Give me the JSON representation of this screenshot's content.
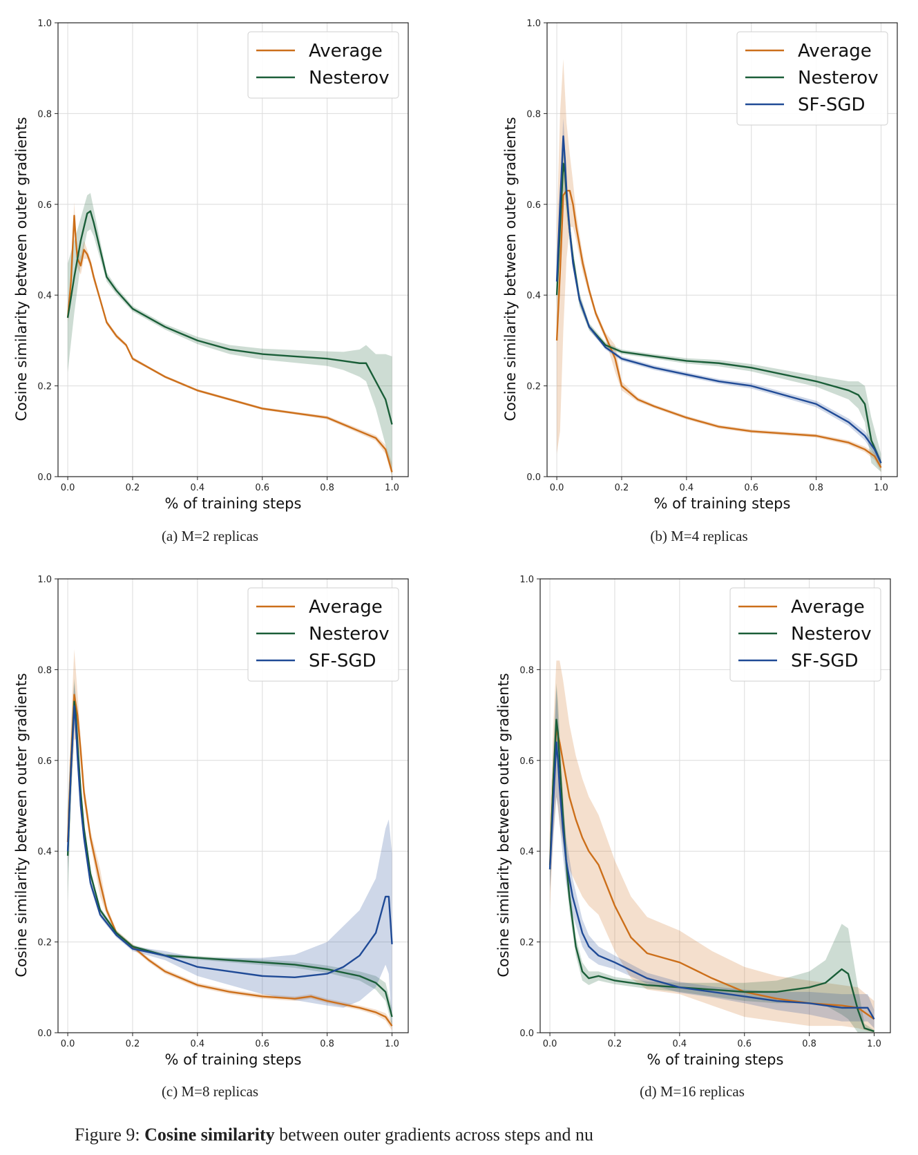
{
  "figure": {
    "caption_prefix": "Figure 9:",
    "caption_bold": "Cosine similarity",
    "caption_rest": "between outer gradients across steps and nu"
  },
  "colors": {
    "Average": "#cc6f1a",
    "Nesterov": "#1a5e38",
    "SF-SGD": "#1f4a96"
  },
  "chart_data": [
    {
      "type": "line",
      "subcaption": "(a) M=2 replicas",
      "xlabel": "% of training steps",
      "ylabel": "Cosine similarity between outer gradients",
      "xlim": [
        -0.03,
        1.05
      ],
      "ylim": [
        0,
        1.0
      ],
      "xticks": [
        "0.0",
        "0.2",
        "0.4",
        "0.6",
        "0.8",
        "1.0"
      ],
      "yticks": [
        "0.0",
        "0.2",
        "0.4",
        "0.6",
        "0.8",
        "1.0"
      ],
      "grid": true,
      "legend_position": "top-right",
      "series": [
        {
          "name": "Average",
          "x": [
            0.0,
            0.01,
            0.02,
            0.025,
            0.03,
            0.04,
            0.05,
            0.06,
            0.07,
            0.08,
            0.1,
            0.12,
            0.15,
            0.18,
            0.2,
            0.25,
            0.3,
            0.4,
            0.5,
            0.6,
            0.7,
            0.8,
            0.9,
            0.95,
            0.98,
            1.0
          ],
          "y": [
            0.35,
            0.43,
            0.575,
            0.52,
            0.48,
            0.465,
            0.5,
            0.49,
            0.47,
            0.44,
            0.39,
            0.34,
            0.31,
            0.29,
            0.26,
            0.24,
            0.22,
            0.19,
            0.17,
            0.15,
            0.14,
            0.13,
            0.1,
            0.085,
            0.06,
            0.01
          ],
          "band": [
            0.01,
            0.02,
            0.03,
            0.02,
            0.02,
            0.02,
            0.02,
            0.01,
            0.01,
            0.01,
            0.005,
            0.005,
            0.005,
            0.004,
            0.004,
            0.003,
            0.003,
            0.003,
            0.003,
            0.003,
            0.003,
            0.004,
            0.005,
            0.006,
            0.01,
            0.02
          ]
        },
        {
          "name": "Nesterov",
          "x": [
            0.0,
            0.02,
            0.04,
            0.06,
            0.07,
            0.08,
            0.1,
            0.12,
            0.15,
            0.2,
            0.3,
            0.4,
            0.5,
            0.6,
            0.7,
            0.8,
            0.85,
            0.9,
            0.92,
            0.95,
            0.98,
            1.0
          ],
          "y": [
            0.35,
            0.44,
            0.52,
            0.58,
            0.585,
            0.56,
            0.5,
            0.44,
            0.41,
            0.37,
            0.33,
            0.3,
            0.28,
            0.27,
            0.265,
            0.26,
            0.255,
            0.25,
            0.25,
            0.21,
            0.17,
            0.115
          ],
          "band": [
            0.12,
            0.08,
            0.05,
            0.04,
            0.04,
            0.03,
            0.02,
            0.01,
            0.008,
            0.006,
            0.006,
            0.008,
            0.01,
            0.012,
            0.014,
            0.016,
            0.02,
            0.03,
            0.04,
            0.06,
            0.1,
            0.15
          ]
        }
      ]
    },
    {
      "type": "line",
      "subcaption": "(b) M=4 replicas",
      "xlabel": "% of training steps",
      "ylabel": "Cosine similarity between outer gradients",
      "xlim": [
        -0.03,
        1.05
      ],
      "ylim": [
        0,
        1.0
      ],
      "xticks": [
        "0.0",
        "0.2",
        "0.4",
        "0.6",
        "0.8",
        "1.0"
      ],
      "yticks": [
        "0.0",
        "0.2",
        "0.4",
        "0.6",
        "0.8",
        "1.0"
      ],
      "grid": true,
      "legend_position": "top-right",
      "series": [
        {
          "name": "Average",
          "x": [
            0.0,
            0.01,
            0.02,
            0.03,
            0.04,
            0.05,
            0.06,
            0.08,
            0.1,
            0.12,
            0.15,
            0.18,
            0.2,
            0.25,
            0.3,
            0.4,
            0.5,
            0.6,
            0.7,
            0.8,
            0.9,
            0.95,
            0.98,
            1.0
          ],
          "y": [
            0.3,
            0.45,
            0.62,
            0.63,
            0.63,
            0.6,
            0.55,
            0.47,
            0.41,
            0.36,
            0.31,
            0.26,
            0.2,
            0.17,
            0.155,
            0.13,
            0.11,
            0.1,
            0.095,
            0.09,
            0.075,
            0.06,
            0.045,
            0.02
          ],
          "band": [
            0.25,
            0.35,
            0.3,
            0.15,
            0.08,
            0.05,
            0.03,
            0.02,
            0.01,
            0.008,
            0.008,
            0.03,
            0.01,
            0.005,
            0.004,
            0.004,
            0.004,
            0.004,
            0.004,
            0.004,
            0.005,
            0.006,
            0.008,
            0.01
          ]
        },
        {
          "name": "Nesterov",
          "x": [
            0.0,
            0.01,
            0.02,
            0.025,
            0.03,
            0.04,
            0.05,
            0.07,
            0.1,
            0.15,
            0.2,
            0.3,
            0.4,
            0.5,
            0.6,
            0.7,
            0.8,
            0.9,
            0.93,
            0.95,
            0.97,
            1.0
          ],
          "y": [
            0.4,
            0.55,
            0.69,
            0.67,
            0.62,
            0.54,
            0.48,
            0.39,
            0.33,
            0.29,
            0.275,
            0.265,
            0.255,
            0.25,
            0.24,
            0.225,
            0.21,
            0.19,
            0.18,
            0.16,
            0.08,
            0.03
          ],
          "band": [
            0.03,
            0.04,
            0.06,
            0.05,
            0.04,
            0.03,
            0.02,
            0.015,
            0.008,
            0.006,
            0.005,
            0.005,
            0.006,
            0.007,
            0.008,
            0.01,
            0.012,
            0.02,
            0.03,
            0.04,
            0.05,
            0.02
          ]
        },
        {
          "name": "SF-SGD",
          "x": [
            0.0,
            0.01,
            0.02,
            0.025,
            0.03,
            0.04,
            0.05,
            0.07,
            0.1,
            0.15,
            0.2,
            0.3,
            0.4,
            0.5,
            0.6,
            0.7,
            0.8,
            0.9,
            0.95,
            0.98,
            1.0
          ],
          "y": [
            0.43,
            0.6,
            0.75,
            0.7,
            0.63,
            0.54,
            0.47,
            0.39,
            0.33,
            0.285,
            0.26,
            0.24,
            0.225,
            0.21,
            0.2,
            0.18,
            0.16,
            0.12,
            0.09,
            0.06,
            0.03
          ],
          "band": [
            0.02,
            0.03,
            0.04,
            0.03,
            0.02,
            0.015,
            0.01,
            0.01,
            0.006,
            0.005,
            0.005,
            0.005,
            0.005,
            0.005,
            0.006,
            0.006,
            0.007,
            0.008,
            0.01,
            0.012,
            0.01
          ]
        }
      ]
    },
    {
      "type": "line",
      "subcaption": "(c) M=8 replicas",
      "xlabel": "% of training steps",
      "ylabel": "Cosine similarity between outer gradients",
      "xlim": [
        -0.03,
        1.05
      ],
      "ylim": [
        0,
        1.0
      ],
      "xticks": [
        "0.0",
        "0.2",
        "0.4",
        "0.6",
        "0.8",
        "1.0"
      ],
      "yticks": [
        "0.0",
        "0.2",
        "0.4",
        "0.6",
        "0.8",
        "1.0"
      ],
      "grid": true,
      "legend_position": "top-right",
      "series": [
        {
          "name": "Average",
          "x": [
            0.0,
            0.01,
            0.02,
            0.03,
            0.04,
            0.05,
            0.07,
            0.1,
            0.12,
            0.15,
            0.2,
            0.25,
            0.3,
            0.35,
            0.4,
            0.5,
            0.6,
            0.7,
            0.75,
            0.8,
            0.9,
            0.95,
            0.98,
            1.0
          ],
          "y": [
            0.42,
            0.6,
            0.745,
            0.7,
            0.62,
            0.53,
            0.43,
            0.33,
            0.27,
            0.22,
            0.19,
            0.16,
            0.135,
            0.12,
            0.105,
            0.09,
            0.08,
            0.075,
            0.08,
            0.07,
            0.055,
            0.045,
            0.035,
            0.015
          ],
          "band": [
            0.06,
            0.08,
            0.1,
            0.05,
            0.03,
            0.02,
            0.015,
            0.03,
            0.01,
            0.006,
            0.005,
            0.005,
            0.005,
            0.005,
            0.005,
            0.005,
            0.005,
            0.005,
            0.005,
            0.005,
            0.005,
            0.006,
            0.008,
            0.01
          ]
        },
        {
          "name": "Nesterov",
          "x": [
            0.0,
            0.01,
            0.02,
            0.025,
            0.03,
            0.04,
            0.05,
            0.07,
            0.1,
            0.15,
            0.2,
            0.3,
            0.4,
            0.5,
            0.6,
            0.7,
            0.8,
            0.9,
            0.95,
            0.98,
            1.0
          ],
          "y": [
            0.39,
            0.58,
            0.73,
            0.7,
            0.64,
            0.53,
            0.45,
            0.35,
            0.27,
            0.22,
            0.19,
            0.17,
            0.165,
            0.16,
            0.155,
            0.15,
            0.14,
            0.125,
            0.11,
            0.09,
            0.035
          ],
          "band": [
            0.1,
            0.07,
            0.05,
            0.04,
            0.03,
            0.02,
            0.015,
            0.01,
            0.006,
            0.005,
            0.004,
            0.004,
            0.004,
            0.005,
            0.006,
            0.007,
            0.008,
            0.01,
            0.015,
            0.02,
            0.02
          ]
        },
        {
          "name": "SF-SGD",
          "x": [
            0.0,
            0.01,
            0.02,
            0.025,
            0.03,
            0.04,
            0.05,
            0.07,
            0.1,
            0.15,
            0.2,
            0.3,
            0.4,
            0.5,
            0.6,
            0.7,
            0.8,
            0.85,
            0.9,
            0.95,
            0.98,
            0.99,
            1.0
          ],
          "y": [
            0.4,
            0.58,
            0.72,
            0.68,
            0.61,
            0.5,
            0.43,
            0.33,
            0.26,
            0.215,
            0.185,
            0.17,
            0.145,
            0.135,
            0.125,
            0.122,
            0.13,
            0.145,
            0.17,
            0.22,
            0.3,
            0.3,
            0.195
          ],
          "band": [
            0.05,
            0.05,
            0.05,
            0.04,
            0.03,
            0.02,
            0.015,
            0.01,
            0.006,
            0.005,
            0.005,
            0.01,
            0.02,
            0.03,
            0.04,
            0.05,
            0.07,
            0.09,
            0.1,
            0.12,
            0.15,
            0.17,
            0.2
          ]
        }
      ]
    },
    {
      "type": "line",
      "subcaption": "(d) M=16 replicas",
      "xlabel": "% of training steps",
      "ylabel": "Cosine similarity between outer gradients",
      "xlim": [
        -0.03,
        1.05
      ],
      "ylim": [
        0,
        1.0
      ],
      "xticks": [
        "0.0",
        "0.2",
        "0.4",
        "0.6",
        "0.8",
        "1.0"
      ],
      "yticks": [
        "0.0",
        "0.2",
        "0.4",
        "0.6",
        "0.8",
        "1.0"
      ],
      "grid": true,
      "legend_position": "top-right",
      "series": [
        {
          "name": "Average",
          "x": [
            0.0,
            0.01,
            0.02,
            0.03,
            0.04,
            0.06,
            0.08,
            0.1,
            0.12,
            0.15,
            0.2,
            0.25,
            0.3,
            0.35,
            0.4,
            0.5,
            0.6,
            0.7,
            0.8,
            0.9,
            0.95,
            1.0
          ],
          "y": [
            0.37,
            0.55,
            0.67,
            0.64,
            0.6,
            0.52,
            0.47,
            0.43,
            0.4,
            0.37,
            0.28,
            0.21,
            0.175,
            0.165,
            0.155,
            0.12,
            0.09,
            0.075,
            0.065,
            0.06,
            0.055,
            0.03
          ],
          "band": [
            0.1,
            0.12,
            0.15,
            0.18,
            0.18,
            0.16,
            0.14,
            0.13,
            0.12,
            0.11,
            0.1,
            0.09,
            0.08,
            0.075,
            0.07,
            0.06,
            0.055,
            0.05,
            0.05,
            0.045,
            0.045,
            0.04
          ]
        },
        {
          "name": "Nesterov",
          "x": [
            0.0,
            0.01,
            0.02,
            0.025,
            0.03,
            0.04,
            0.05,
            0.06,
            0.08,
            0.1,
            0.12,
            0.15,
            0.2,
            0.3,
            0.4,
            0.5,
            0.6,
            0.7,
            0.8,
            0.85,
            0.9,
            0.92,
            0.95,
            0.97,
            1.0
          ],
          "y": [
            0.36,
            0.55,
            0.69,
            0.66,
            0.6,
            0.48,
            0.38,
            0.3,
            0.19,
            0.135,
            0.12,
            0.125,
            0.115,
            0.105,
            0.1,
            0.095,
            0.09,
            0.09,
            0.1,
            0.11,
            0.14,
            0.13,
            0.05,
            0.01,
            0.003
          ],
          "band": [
            0.04,
            0.06,
            0.08,
            0.07,
            0.06,
            0.05,
            0.04,
            0.03,
            0.02,
            0.02,
            0.015,
            0.01,
            0.008,
            0.008,
            0.01,
            0.015,
            0.02,
            0.025,
            0.035,
            0.05,
            0.1,
            0.1,
            0.05,
            0.01,
            0.003
          ]
        },
        {
          "name": "SF-SGD",
          "x": [
            0.0,
            0.01,
            0.02,
            0.025,
            0.03,
            0.04,
            0.05,
            0.07,
            0.1,
            0.12,
            0.15,
            0.2,
            0.3,
            0.4,
            0.5,
            0.6,
            0.7,
            0.8,
            0.9,
            0.95,
            0.98,
            1.0
          ],
          "y": [
            0.36,
            0.5,
            0.64,
            0.6,
            0.54,
            0.45,
            0.38,
            0.3,
            0.22,
            0.19,
            0.17,
            0.155,
            0.12,
            0.1,
            0.09,
            0.08,
            0.07,
            0.065,
            0.055,
            0.055,
            0.055,
            0.03
          ],
          "band": [
            0.05,
            0.08,
            0.12,
            0.1,
            0.08,
            0.06,
            0.05,
            0.04,
            0.03,
            0.025,
            0.02,
            0.015,
            0.012,
            0.012,
            0.012,
            0.015,
            0.02,
            0.025,
            0.03,
            0.03,
            0.03,
            0.02
          ]
        }
      ]
    }
  ]
}
